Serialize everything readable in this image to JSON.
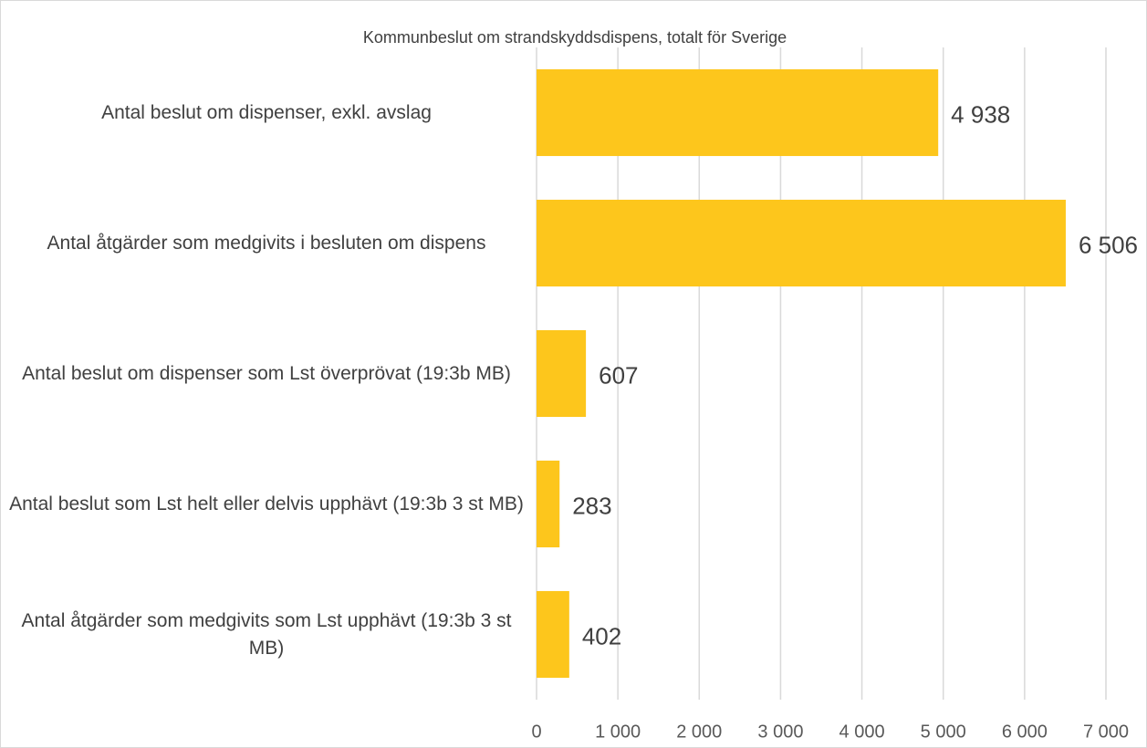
{
  "chart_data": {
    "type": "bar",
    "orientation": "horizontal",
    "title": "Kommunbeslut om strandskyddsdispens, totalt för Sverige",
    "categories": [
      "Antal beslut om dispenser, exkl. avslag",
      "Antal åtgärder som medgivits i besluten om dispens",
      "Antal beslut om dispenser som Lst överprövat (19:3b MB)",
      "Antal beslut som Lst helt eller delvis upphävt (19:3b 3 st MB)",
      "Antal åtgärder som medgivits som Lst upphävt (19:3b 3 st MB)"
    ],
    "values": [
      4938,
      6506,
      607,
      283,
      402
    ],
    "value_labels": [
      "4 938",
      "6 506",
      "607",
      "283",
      "402"
    ],
    "color": "#fdc61c",
    "xlim": [
      0,
      7000
    ],
    "xticks": [
      0,
      {
        "value": 1000,
        "label": "1 000"
      },
      {
        "value": 2000,
        "label": "2 000"
      },
      {
        "value": 3000,
        "label": "3 000"
      },
      {
        "value": 4000,
        "label": "4 000"
      },
      {
        "value": 5000,
        "label": "5 000"
      },
      {
        "value": 6000,
        "label": "6 000"
      },
      {
        "value": 7000,
        "label": "7 000"
      }
    ],
    "grid": true
  }
}
